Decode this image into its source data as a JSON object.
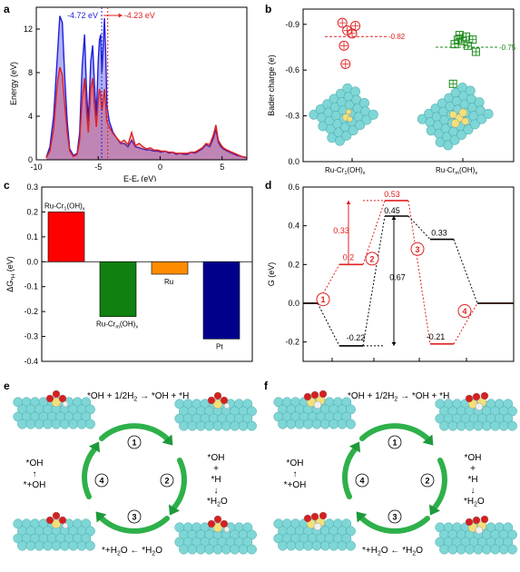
{
  "panels": {
    "a": {
      "label": "a",
      "chart_data": {
        "type": "line",
        "xlabel": "E-E",
        "xlabel_sub": "f",
        "xlabel_unit": " (eV)",
        "ylabel": "Energy (eV)",
        "xlim": [
          -10,
          7
        ],
        "ylim": [
          0,
          14
        ],
        "xticks": [
          -10,
          -5,
          0,
          5
        ],
        "yticks": [
          0,
          4,
          8,
          12
        ],
        "annotations": [
          {
            "text": "-4.72 eV",
            "x": -4.72,
            "color": "#1f1fdf"
          },
          {
            "text": "-4.23 eV",
            "x": -4.23,
            "color": "#e02020"
          }
        ],
        "series": [
          {
            "color": "#1f1fdf",
            "points": [
              [
                -9.2,
                0.2
              ],
              [
                -8.9,
                1.2
              ],
              [
                -8.6,
                4
              ],
              [
                -8.3,
                9.5
              ],
              [
                -8.1,
                13.2
              ],
              [
                -7.9,
                12.6
              ],
              [
                -7.7,
                7.5
              ],
              [
                -7.5,
                3.5
              ],
              [
                -7.3,
                1
              ],
              [
                -7.0,
                0.4
              ],
              [
                -6.7,
                0.6
              ],
              [
                -6.5,
                2.5
              ],
              [
                -6.3,
                8.5
              ],
              [
                -6.1,
                11.5
              ],
              [
                -5.95,
                6.5
              ],
              [
                -5.8,
                3.5
              ],
              [
                -5.6,
                9
              ],
              [
                -5.45,
                10.5
              ],
              [
                -5.3,
                7
              ],
              [
                -5.15,
                4
              ],
              [
                -5.0,
                9
              ],
              [
                -4.9,
                11
              ],
              [
                -4.8,
                11.5
              ],
              [
                -4.7,
                8
              ],
              [
                -4.6,
                10.5
              ],
              [
                -4.5,
                13
              ],
              [
                -4.4,
                10
              ],
              [
                -4.3,
                5
              ],
              [
                -4.1,
                3.5
              ],
              [
                -3.8,
                2.5
              ],
              [
                -3.5,
                2
              ],
              [
                -3.2,
                1.5
              ],
              [
                -2.9,
                1.5
              ],
              [
                -2.6,
                1.2
              ],
              [
                -2.3,
                1.8
              ],
              [
                -2.0,
                1.2
              ],
              [
                -1.7,
                1.1
              ],
              [
                -1.4,
                1
              ],
              [
                -1.1,
                0.9
              ],
              [
                -0.8,
                0.9
              ],
              [
                -0.5,
                0.8
              ],
              [
                -0.2,
                0.8
              ],
              [
                0.1,
                0.7
              ],
              [
                0.4,
                0.8
              ],
              [
                0.7,
                0.6
              ],
              [
                1.0,
                0.7
              ],
              [
                1.3,
                0.5
              ],
              [
                1.6,
                0.6
              ],
              [
                1.9,
                0.5
              ],
              [
                2.2,
                0.5
              ],
              [
                2.5,
                0.7
              ],
              [
                2.8,
                0.6
              ],
              [
                3.1,
                0.8
              ],
              [
                3.4,
                1
              ],
              [
                3.7,
                1.4
              ],
              [
                4.0,
                1.2
              ],
              [
                4.3,
                2
              ],
              [
                4.5,
                2.8
              ],
              [
                4.7,
                1.6
              ],
              [
                4.9,
                1.2
              ],
              [
                5.1,
                1
              ],
              [
                5.4,
                0.8
              ],
              [
                5.8,
                0.6
              ],
              [
                6.2,
                0.4
              ],
              [
                6.6,
                0.3
              ],
              [
                7.0,
                0.2
              ]
            ]
          },
          {
            "color": "#e02020",
            "points": [
              [
                -9.2,
                0.2
              ],
              [
                -8.9,
                0.8
              ],
              [
                -8.6,
                2.8
              ],
              [
                -8.3,
                7
              ],
              [
                -8.1,
                8.5
              ],
              [
                -7.9,
                7.8
              ],
              [
                -7.7,
                5
              ],
              [
                -7.5,
                2.5
              ],
              [
                -7.3,
                0.8
              ],
              [
                -7.0,
                0.3
              ],
              [
                -6.7,
                0.5
              ],
              [
                -6.5,
                1.8
              ],
              [
                -6.3,
                5.5
              ],
              [
                -6.1,
                7.5
              ],
              [
                -5.95,
                4.5
              ],
              [
                -5.8,
                2.5
              ],
              [
                -5.6,
                6.5
              ],
              [
                -5.45,
                7.5
              ],
              [
                -5.3,
                5
              ],
              [
                -5.15,
                3
              ],
              [
                -5.0,
                5.5
              ],
              [
                -4.9,
                6.5
              ],
              [
                -4.8,
                6
              ],
              [
                -4.7,
                4.5
              ],
              [
                -4.6,
                5.5
              ],
              [
                -4.5,
                6.5
              ],
              [
                -4.4,
                5
              ],
              [
                -4.3,
                3.5
              ],
              [
                -4.1,
                3
              ],
              [
                -3.8,
                2.4
              ],
              [
                -3.5,
                2
              ],
              [
                -3.2,
                1.6
              ],
              [
                -2.9,
                1.8
              ],
              [
                -2.6,
                1.4
              ],
              [
                -2.3,
                2.5
              ],
              [
                -2.0,
                1.3
              ],
              [
                -1.7,
                1.5
              ],
              [
                -1.4,
                1.2
              ],
              [
                -1.1,
                1
              ],
              [
                -0.8,
                1.1
              ],
              [
                -0.5,
                0.9
              ],
              [
                -0.2,
                0.9
              ],
              [
                0.1,
                0.8
              ],
              [
                0.4,
                0.8
              ],
              [
                0.7,
                0.7
              ],
              [
                1.0,
                0.7
              ],
              [
                1.3,
                0.6
              ],
              [
                1.6,
                0.6
              ],
              [
                1.9,
                0.6
              ],
              [
                2.2,
                0.6
              ],
              [
                2.5,
                0.7
              ],
              [
                2.8,
                0.7
              ],
              [
                3.1,
                0.9
              ],
              [
                3.4,
                1.1
              ],
              [
                3.7,
                1.5
              ],
              [
                4.0,
                1.4
              ],
              [
                4.3,
                2.3
              ],
              [
                4.5,
                3.2
              ],
              [
                4.7,
                1.8
              ],
              [
                4.9,
                1.4
              ],
              [
                5.1,
                1.1
              ],
              [
                5.4,
                0.9
              ],
              [
                5.8,
                0.7
              ],
              [
                6.2,
                0.5
              ],
              [
                6.6,
                0.3
              ],
              [
                7.0,
                0.2
              ]
            ]
          }
        ]
      }
    },
    "b": {
      "label": "b",
      "chart_data": {
        "type": "scatter",
        "ylabel": "Bader charge (e)",
        "ylim": [
          0,
          -1.0
        ],
        "yticks": [
          0,
          -0.3,
          -0.6,
          -0.9
        ],
        "ytick_labels": [
          "0.0",
          "-0.3",
          "-0.6",
          "-0.9"
        ],
        "categories": [
          "Ru-Cr",
          "Ru-Cr"
        ],
        "category_subs": [
          "1",
          "m"
        ],
        "category_suffix": "(OH)",
        "category_suffix_sub": "x",
        "series": [
          {
            "color": "#e02020",
            "marker": "circle-plus",
            "mean": -0.82,
            "mean_label": "-0.82",
            "points": [
              [
                -0.06,
                -0.91
              ],
              [
                0.02,
                -0.89
              ],
              [
                -0.03,
                -0.86
              ],
              [
                0.0,
                -0.84
              ],
              [
                -0.05,
                -0.76
              ],
              [
                -0.04,
                -0.64
              ]
            ]
          },
          {
            "color": "#1a8a1a",
            "marker": "square-plus",
            "mean": -0.75,
            "mean_label": "-0.75",
            "points": [
              [
                -0.02,
                -0.83
              ],
              [
                0.02,
                -0.82
              ],
              [
                -0.03,
                -0.8
              ],
              [
                0.06,
                -0.8
              ],
              [
                0.0,
                -0.79
              ],
              [
                -0.05,
                -0.77
              ],
              [
                0.03,
                -0.76
              ],
              [
                0.08,
                -0.72
              ],
              [
                -0.06,
                -0.51
              ]
            ]
          }
        ]
      }
    },
    "c": {
      "label": "c",
      "chart_data": {
        "type": "bar",
        "ylabel": "ΔG",
        "ylabel_sub": "*H",
        "ylabel_unit": " (eV)",
        "ylim": [
          -0.4,
          0.3
        ],
        "yticks": [
          -0.4,
          -0.3,
          -0.2,
          -0.1,
          0.0,
          0.1,
          0.2,
          0.3
        ],
        "ytick_labels": [
          "-0.4",
          "-0.3",
          "-0.2",
          "-0.1",
          "0.0",
          "0.1",
          "0.2",
          "0.3"
        ],
        "bars": [
          {
            "label": "Ru-Cr",
            "label_sub": "1",
            "label_suffix": "(OH)",
            "label_suffix_sub": "x",
            "value": 0.2,
            "color": "#ff0000"
          },
          {
            "label": "Ru-Cr",
            "label_sub": "m",
            "label_suffix": "(OH)",
            "label_suffix_sub": "x",
            "value": -0.22,
            "color": "#108010"
          },
          {
            "label": "Ru",
            "label_sub": "",
            "label_suffix": "",
            "label_suffix_sub": "",
            "value": -0.05,
            "color": "#ff8c00"
          },
          {
            "label": "Pt",
            "label_sub": "",
            "label_suffix": "",
            "label_suffix_sub": "",
            "value": -0.31,
            "color": "#00008b"
          }
        ]
      }
    },
    "d": {
      "label": "d",
      "chart_data": {
        "type": "line",
        "ylabel": "G (eV)",
        "ylim": [
          -0.3,
          0.6
        ],
        "yticks": [
          -0.2,
          0.0,
          0.2,
          0.4,
          0.6
        ],
        "ytick_labels": [
          "-0.2",
          "0.0",
          "0.2",
          "0.4",
          "0.6"
        ],
        "series": [
          {
            "color": "#e02020",
            "levels": [
              0,
              0.2,
              0.53,
              -0.21,
              0
            ]
          },
          {
            "color": "#000000",
            "levels": [
              0,
              -0.22,
              0.45,
              0.33,
              0
            ]
          }
        ],
        "value_labels": [
          {
            "text": "0.53",
            "color": "#e02020"
          },
          {
            "text": "0.33",
            "color": "#e02020"
          },
          {
            "text": "0.2",
            "color": "#e02020"
          },
          {
            "text": "0.45",
            "color": "#000000"
          },
          {
            "text": "0.33",
            "color": "#000000"
          },
          {
            "text": "0.67",
            "color": "#000000"
          },
          {
            "text": "-0.22",
            "color": "#000000"
          },
          {
            "text": "-0.21",
            "color": "#000000"
          }
        ],
        "steps": [
          "1",
          "2",
          "3",
          "4"
        ]
      }
    },
    "e": {
      "label": "e"
    },
    "f": {
      "label": "f"
    }
  },
  "cycle": {
    "top_parts": [
      "*OH + 1/2H",
      "2",
      " → *OH + *H"
    ],
    "bottom": "*+H",
    "bottom_sub": "2",
    "bottom_mid": "O ← *H",
    "bottom_sub2": "2",
    "bottom_end": "O",
    "right_lines": [
      "*OH",
      "+",
      "*H",
      "↓",
      "*H"
    ],
    "right_sub": "2",
    "right_end": "O",
    "left_lines": [
      "*OH",
      "↑",
      "*+OH"
    ],
    "steps": [
      "1",
      "2",
      "3",
      "4"
    ]
  }
}
